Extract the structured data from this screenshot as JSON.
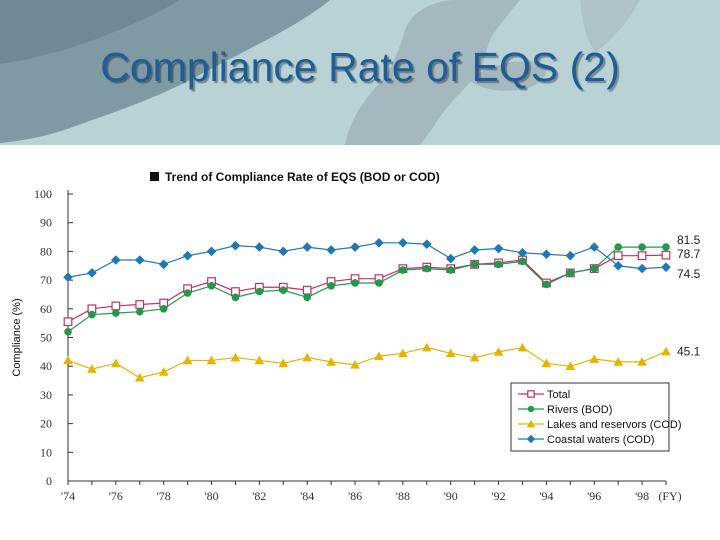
{
  "slide": {
    "title": "Compliance Rate of EQS (2)"
  },
  "chart_data": {
    "type": "line",
    "title": "Trend of Compliance Rate of EQS (BOD or COD)",
    "ylabel": "Compliance (%)",
    "xlabel": "",
    "x_unit": "(FY)",
    "ylim": [
      0,
      100
    ],
    "yticks": [
      0,
      10,
      20,
      30,
      40,
      50,
      60,
      70,
      80,
      90,
      100
    ],
    "xlim": [
      1974,
      1999
    ],
    "x_tick_values": [
      1974,
      1976,
      1978,
      1980,
      1982,
      1984,
      1986,
      1988,
      1990,
      1992,
      1994,
      1996,
      1998
    ],
    "x_tick_labels": [
      "'74",
      "'76",
      "'78",
      "'80",
      "'82",
      "'84",
      "'86",
      "'88",
      "'90",
      "'92",
      "'94",
      "'96",
      "'98"
    ],
    "grid": false,
    "legend_position": "bottom-right",
    "x": [
      1974,
      1975,
      1976,
      1977,
      1978,
      1979,
      1980,
      1981,
      1982,
      1983,
      1984,
      1985,
      1986,
      1987,
      1988,
      1989,
      1990,
      1991,
      1992,
      1993,
      1994,
      1995,
      1996,
      1997,
      1998,
      1999
    ],
    "series": [
      {
        "name": "Total",
        "color": "#c0306a",
        "marker": "square-open",
        "values": [
          55.5,
          60,
          61,
          61.5,
          62,
          67,
          69.5,
          66,
          67.5,
          67.5,
          66.5,
          69.5,
          70.5,
          70.5,
          74,
          74.5,
          74,
          75.5,
          76,
          77,
          69,
          72.5,
          74,
          78.5,
          78.5,
          78.7
        ],
        "end_label": "78.7"
      },
      {
        "name": "Rivers (BOD)",
        "color": "#1f9a4a",
        "marker": "circle",
        "values": [
          52,
          58,
          58.5,
          59,
          60,
          65.5,
          68,
          64,
          66,
          66.5,
          64,
          68,
          69,
          69,
          73.5,
          74,
          73.5,
          75.5,
          75.5,
          76.5,
          68.5,
          72.5,
          74,
          81.5,
          81.5,
          81.5
        ],
        "end_label": "81.5"
      },
      {
        "name": "Lakes and reservors (COD)",
        "color": "#e5b400",
        "marker": "triangle",
        "values": [
          42,
          39,
          41,
          36,
          38,
          42,
          42,
          43,
          42,
          41,
          43,
          41.5,
          40.5,
          43.5,
          44.5,
          46.5,
          44.5,
          43,
          45,
          46.5,
          41,
          40,
          42.5,
          41.5,
          41.5,
          45.1
        ],
        "end_label": "45.1"
      },
      {
        "name": "Coastal waters (COD)",
        "color": "#1f78b4",
        "marker": "diamond",
        "values": [
          71,
          72.5,
          77,
          77,
          75.5,
          78.5,
          80,
          82,
          81.5,
          80,
          81.5,
          80.5,
          81.5,
          83,
          83,
          82.5,
          77.5,
          80.5,
          81,
          79.5,
          79,
          78.5,
          81.5,
          75,
          74,
          74.5
        ],
        "end_label": "74.5"
      }
    ]
  }
}
